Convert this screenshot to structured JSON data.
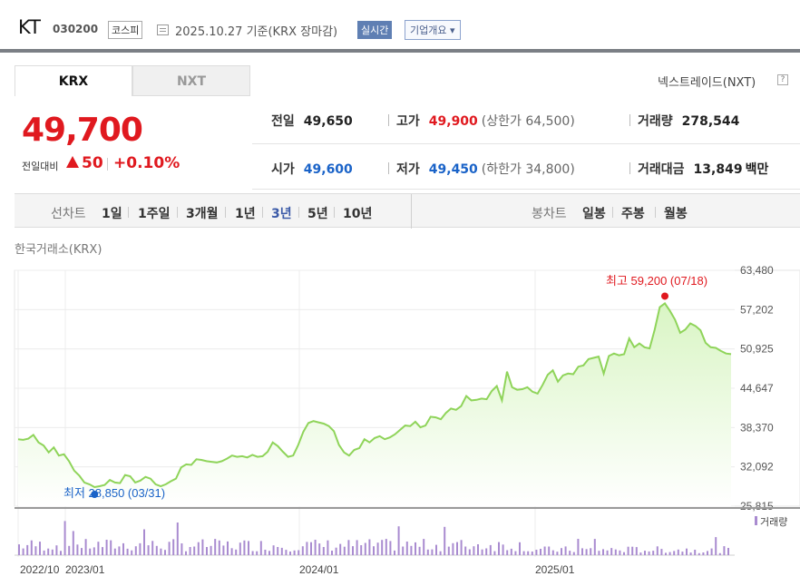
{
  "header": {
    "name": "KT",
    "code": "030200",
    "market": "코스피",
    "date": "2025.10.27  기준(KRX 장마감)",
    "realtime": "실시간",
    "overview": "기업개요 ▾"
  },
  "tabs": {
    "krx": "KRX",
    "nxt": "NXT"
  },
  "nextrade": "넥스트레이드(NXT)",
  "help": "?",
  "quote": {
    "price": "49,700",
    "change_label": "전일대비",
    "change": "50",
    "change_pct": "+0.10%",
    "prev_label": "전일",
    "prev": "49,650",
    "high_label": "고가",
    "high": "49,900",
    "upper_limit": "(상한가 64,500)",
    "volume_label": "거래량",
    "volume": "278,544",
    "open_label": "시가",
    "open": "49,600",
    "low_label": "저가",
    "low": "49,450",
    "lower_limit": "(하한가 34,800)",
    "amount_label": "거래대금",
    "amount": "13,849",
    "amount_unit": "백만"
  },
  "periods": {
    "line_label": "선차트",
    "items": [
      "1일",
      "1주일",
      "3개월",
      "1년",
      "3년",
      "5년",
      "10년"
    ],
    "active": "3년",
    "candle_label": "봉차트",
    "candle_items": [
      "일봉",
      "주봉",
      "월봉"
    ]
  },
  "exchange_label": "한국거래소(KRX)",
  "colors": {
    "up": "#e0191f",
    "down": "#1a63c8",
    "area_top": "#d9f5c4",
    "line": "#8fd45a",
    "volume": "#a98bd0"
  },
  "chart_data": {
    "type": "area",
    "x_ticks": [
      "2022/10",
      "2023/01",
      "2024/01",
      "2025/01"
    ],
    "y_ticks": [
      63480,
      57202,
      50925,
      44647,
      38370,
      32092,
      25815
    ],
    "ylim": [
      25815,
      63480
    ],
    "high_label": "최고 59,200 (07/18)",
    "low_label": "최저 28,850 (03/31)",
    "volume_legend": "거래량",
    "prices": [
      36500,
      36400,
      36600,
      37200,
      36000,
      35500,
      34400,
      35200,
      33900,
      34100,
      33000,
      31500,
      30700,
      29600,
      29300,
      28850,
      29000,
      29200,
      30000,
      29600,
      29500,
      30800,
      30600,
      29600,
      29900,
      30500,
      30200,
      29300,
      29000,
      29300,
      29800,
      30200,
      32000,
      32500,
      32400,
      33300,
      33200,
      33000,
      32900,
      32800,
      33000,
      33400,
      33900,
      33700,
      33800,
      33600,
      34000,
      33700,
      33800,
      34500,
      36000,
      35400,
      34500,
      33700,
      33900,
      35600,
      37700,
      39100,
      39400,
      39200,
      39000,
      38600,
      37800,
      35600,
      34400,
      33900,
      34800,
      35100,
      36500,
      36000,
      36700,
      37000,
      36500,
      36800,
      37300,
      38000,
      38700,
      38600,
      39300,
      38400,
      38700,
      40100,
      40000,
      39700,
      40700,
      41400,
      41200,
      41800,
      43400,
      42700,
      42800,
      43000,
      42900,
      44200,
      45000,
      42700,
      47300,
      44800,
      44400,
      44500,
      44800,
      44100,
      43800,
      45200,
      46800,
      47500,
      45700,
      46700,
      47000,
      46900,
      48100,
      48300,
      49300,
      49500,
      49700,
      47000,
      49800,
      50200,
      49900,
      50100,
      52600,
      51200,
      51800,
      51200,
      51000,
      54000,
      57600,
      58200,
      57000,
      55600,
      53500,
      54000,
      55000,
      54600,
      53900,
      51900,
      51200,
      51100,
      50600,
      50200,
      50100
    ]
  }
}
